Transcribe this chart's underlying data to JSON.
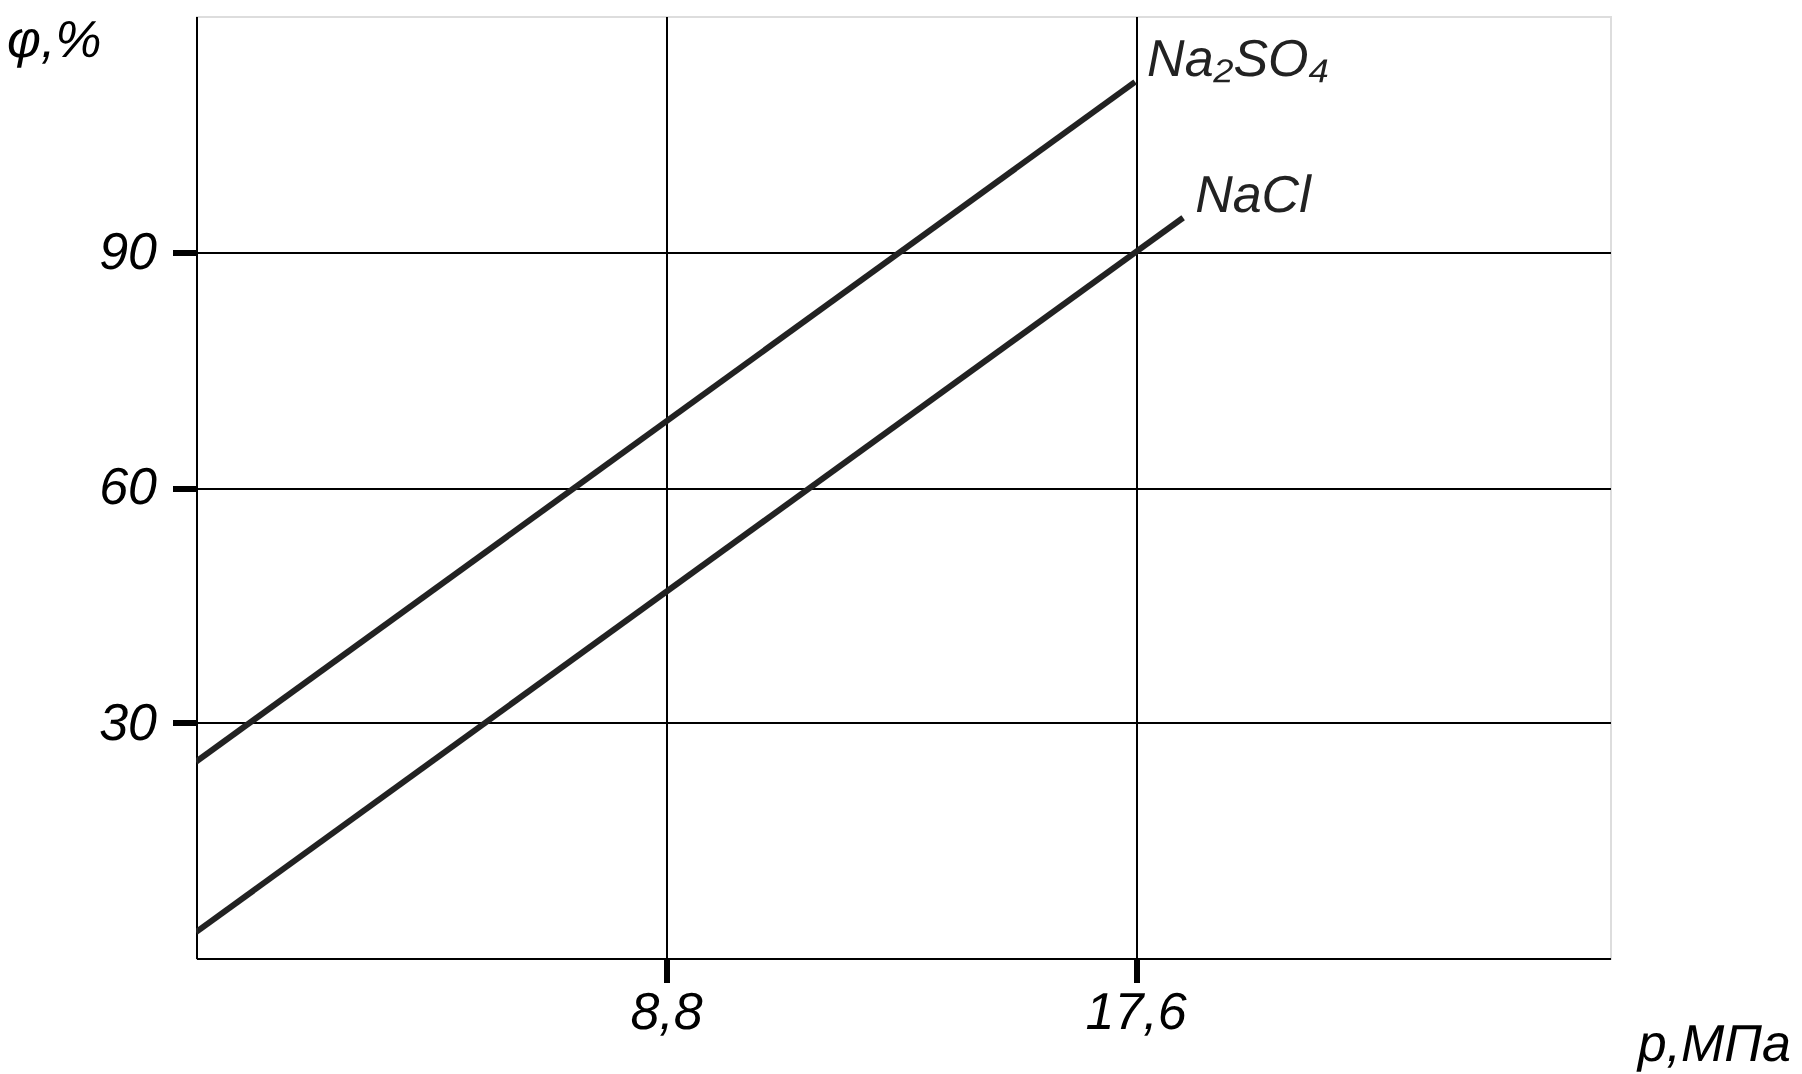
{
  "chart_data": {
    "type": "line",
    "xlabel": "p,МПа",
    "ylabel": "φ,%",
    "series": [
      {
        "name": "Na₂SO₄",
        "color": "#222222",
        "x": [
          0,
          17.6
        ],
        "values": [
          25,
          111.6
        ]
      },
      {
        "name": "NaCl",
        "color": "#222222",
        "x": [
          0,
          18.5
        ],
        "values": [
          3.3,
          94.3
        ]
      }
    ],
    "xlim": [
      0,
      26.5
    ],
    "ylim": [
      0,
      120
    ],
    "xticks": [
      {
        "value": 8.8,
        "label": "8,8"
      },
      {
        "value": 17.6,
        "label": "17,6"
      }
    ],
    "yticks": [
      30,
      60,
      90
    ],
    "grid": true,
    "marker": "none",
    "line_style": "solid"
  }
}
